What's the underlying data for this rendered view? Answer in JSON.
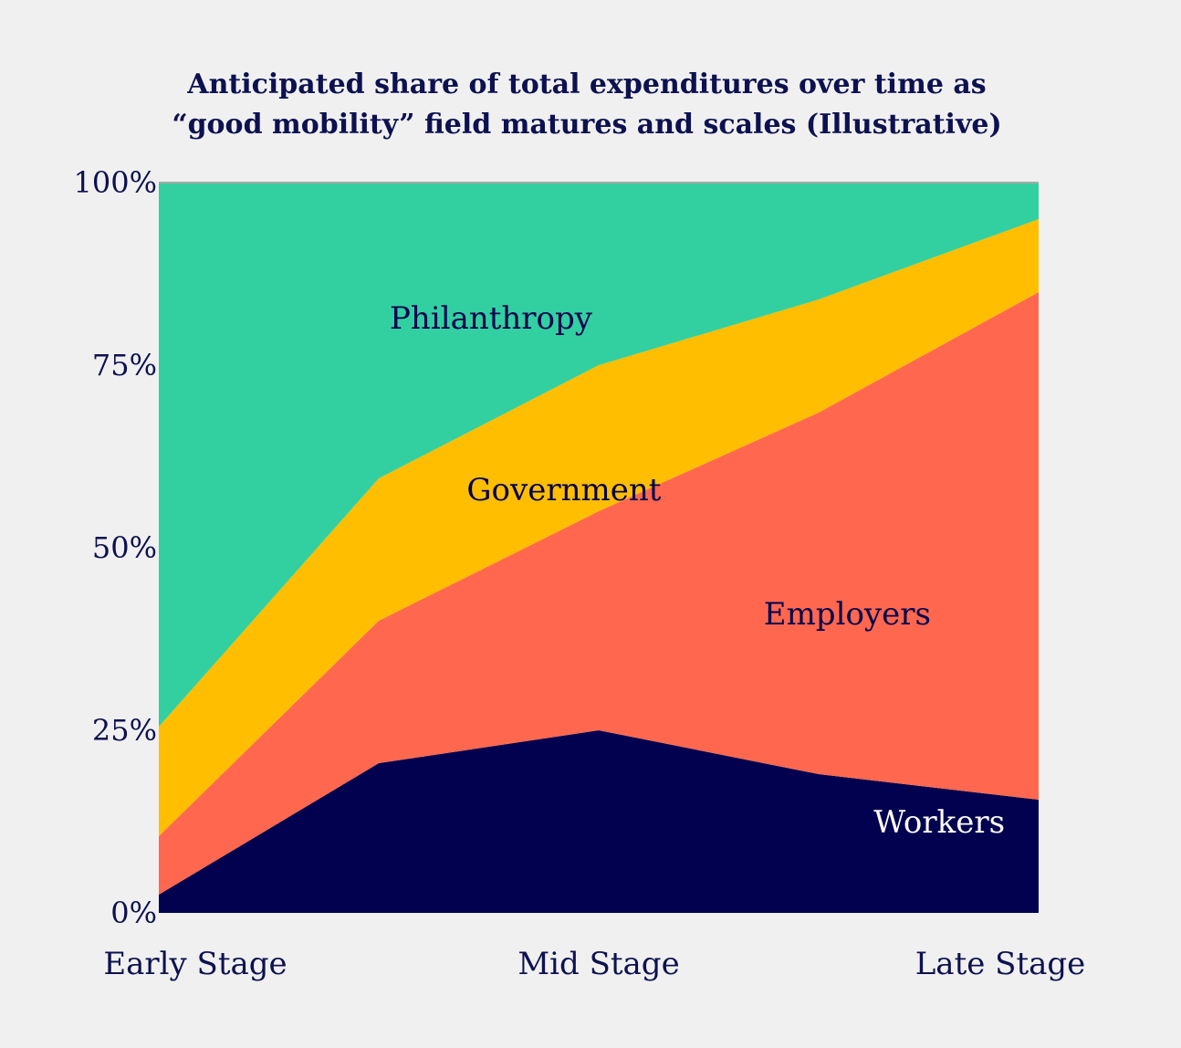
{
  "chart_data": {
    "type": "area",
    "stacked": true,
    "title": [
      "Anticipated share of total expenditures over time as",
      "“good mobility” field matures and scales (Illustrative)"
    ],
    "x": [
      0,
      1,
      2,
      3,
      4
    ],
    "categories": [
      "Early Stage",
      "Mid Stage",
      "Late Stage"
    ],
    "category_positions": [
      0,
      2,
      4
    ],
    "y_ticks": [
      "0%",
      "25%",
      "50%",
      "75%",
      "100%"
    ],
    "y_tick_values": [
      0,
      25,
      50,
      75,
      100
    ],
    "ylim": [
      0,
      100
    ],
    "series": [
      {
        "name": "Workers",
        "values": [
          2.5,
          20.5,
          25,
          19,
          15.5
        ],
        "color": "#02014f",
        "label_color": "#ffffff",
        "label_anchor": [
          3.25,
          11
        ]
      },
      {
        "name": "Employers",
        "values": [
          8,
          19.5,
          30,
          49.5,
          69.5
        ],
        "color": "#ff684e",
        "label_color": "#02014f",
        "label_anchor": [
          2.75,
          39.5
        ]
      },
      {
        "name": "Government",
        "values": [
          15,
          19.5,
          20,
          15.5,
          10
        ],
        "color": "#ffbe00",
        "label_color": "#02014f",
        "label_anchor": [
          1.4,
          56.5
        ]
      },
      {
        "name": "Philanthropy",
        "values": [
          74.5,
          40.5,
          25,
          16,
          5
        ],
        "color": "#32d0a0",
        "label_color": "#02014f",
        "label_anchor": [
          1.05,
          80
        ]
      }
    ]
  }
}
